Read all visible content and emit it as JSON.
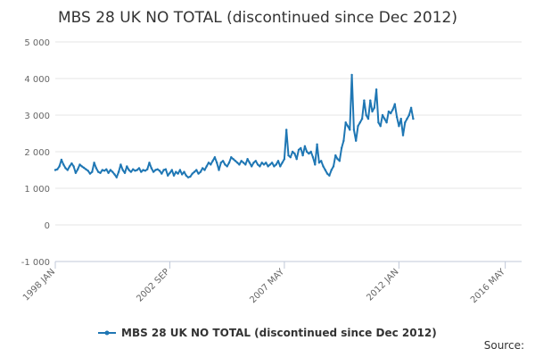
{
  "chart_data": {
    "type": "line",
    "title": "MBS 28 UK NO TOTAL (discontinued since Dec 2012)",
    "source_label": "Source:",
    "xlabel": "",
    "ylabel": "",
    "ylim": [
      -1000,
      5000
    ],
    "yticks": [
      -1000,
      0,
      1000,
      2000,
      3000,
      4000,
      5000
    ],
    "ytick_labels": [
      "-1 000",
      "0",
      "1 000",
      "2 000",
      "3 000",
      "4 000",
      "5 000"
    ],
    "xlim": [
      "1998-01",
      "2017-01"
    ],
    "xticks": [
      "1998-01",
      "2002-09",
      "2007-05",
      "2012-01",
      "2016-05"
    ],
    "xtick_labels": [
      "1998 JAN",
      "2002 SEP",
      "2007 MAY",
      "2012 JAN",
      "2016 MAY"
    ],
    "grid": "horizontal",
    "legend_position": "bottom",
    "line_color": "#1f77b4",
    "series": [
      {
        "name": "MBS 28 UK NO TOTAL (discontinued since Dec 2012)",
        "points": [
          [
            "1998-01",
            1500
          ],
          [
            "1998-02",
            1520
          ],
          [
            "1998-03",
            1600
          ],
          [
            "1998-04",
            1780
          ],
          [
            "1998-05",
            1650
          ],
          [
            "1998-06",
            1550
          ],
          [
            "1998-07",
            1500
          ],
          [
            "1998-08",
            1600
          ],
          [
            "1998-09",
            1680
          ],
          [
            "1998-10",
            1600
          ],
          [
            "1998-11",
            1420
          ],
          [
            "1998-12",
            1520
          ],
          [
            "1999-01",
            1650
          ],
          [
            "1999-02",
            1600
          ],
          [
            "1999-03",
            1560
          ],
          [
            "1999-04",
            1520
          ],
          [
            "1999-05",
            1480
          ],
          [
            "1999-06",
            1400
          ],
          [
            "1999-07",
            1450
          ],
          [
            "1999-08",
            1700
          ],
          [
            "1999-09",
            1550
          ],
          [
            "1999-10",
            1450
          ],
          [
            "1999-11",
            1420
          ],
          [
            "1999-12",
            1500
          ],
          [
            "2000-01",
            1480
          ],
          [
            "2000-02",
            1520
          ],
          [
            "2000-03",
            1420
          ],
          [
            "2000-04",
            1500
          ],
          [
            "2000-05",
            1450
          ],
          [
            "2000-06",
            1380
          ],
          [
            "2000-07",
            1300
          ],
          [
            "2000-08",
            1450
          ],
          [
            "2000-09",
            1650
          ],
          [
            "2000-10",
            1500
          ],
          [
            "2000-11",
            1420
          ],
          [
            "2000-12",
            1600
          ],
          [
            "2001-01",
            1500
          ],
          [
            "2001-02",
            1450
          ],
          [
            "2001-03",
            1520
          ],
          [
            "2001-04",
            1480
          ],
          [
            "2001-05",
            1500
          ],
          [
            "2001-06",
            1550
          ],
          [
            "2001-07",
            1450
          ],
          [
            "2001-08",
            1500
          ],
          [
            "2001-09",
            1480
          ],
          [
            "2001-10",
            1520
          ],
          [
            "2001-11",
            1700
          ],
          [
            "2001-12",
            1550
          ],
          [
            "2002-01",
            1450
          ],
          [
            "2002-02",
            1500
          ],
          [
            "2002-03",
            1520
          ],
          [
            "2002-04",
            1480
          ],
          [
            "2002-05",
            1400
          ],
          [
            "2002-06",
            1500
          ],
          [
            "2002-07",
            1520
          ],
          [
            "2002-08",
            1350
          ],
          [
            "2002-09",
            1420
          ],
          [
            "2002-10",
            1500
          ],
          [
            "2002-11",
            1350
          ],
          [
            "2002-12",
            1450
          ],
          [
            "2003-01",
            1400
          ],
          [
            "2003-02",
            1500
          ],
          [
            "2003-03",
            1380
          ],
          [
            "2003-04",
            1450
          ],
          [
            "2003-05",
            1350
          ],
          [
            "2003-06",
            1300
          ],
          [
            "2003-07",
            1320
          ],
          [
            "2003-08",
            1400
          ],
          [
            "2003-09",
            1450
          ],
          [
            "2003-10",
            1500
          ],
          [
            "2003-11",
            1400
          ],
          [
            "2003-12",
            1450
          ],
          [
            "2004-01",
            1550
          ],
          [
            "2004-02",
            1500
          ],
          [
            "2004-03",
            1600
          ],
          [
            "2004-04",
            1700
          ],
          [
            "2004-05",
            1650
          ],
          [
            "2004-06",
            1750
          ],
          [
            "2004-07",
            1850
          ],
          [
            "2004-08",
            1700
          ],
          [
            "2004-09",
            1500
          ],
          [
            "2004-10",
            1700
          ],
          [
            "2004-11",
            1750
          ],
          [
            "2004-12",
            1650
          ],
          [
            "2005-01",
            1600
          ],
          [
            "2005-02",
            1700
          ],
          [
            "2005-03",
            1850
          ],
          [
            "2005-04",
            1800
          ],
          [
            "2005-05",
            1750
          ],
          [
            "2005-06",
            1700
          ],
          [
            "2005-07",
            1650
          ],
          [
            "2005-08",
            1750
          ],
          [
            "2005-09",
            1700
          ],
          [
            "2005-10",
            1650
          ],
          [
            "2005-11",
            1800
          ],
          [
            "2005-12",
            1700
          ],
          [
            "2006-01",
            1600
          ],
          [
            "2006-02",
            1700
          ],
          [
            "2006-03",
            1750
          ],
          [
            "2006-04",
            1650
          ],
          [
            "2006-05",
            1600
          ],
          [
            "2006-06",
            1700
          ],
          [
            "2006-07",
            1650
          ],
          [
            "2006-08",
            1700
          ],
          [
            "2006-09",
            1600
          ],
          [
            "2006-10",
            1650
          ],
          [
            "2006-11",
            1700
          ],
          [
            "2006-12",
            1600
          ],
          [
            "2007-01",
            1650
          ],
          [
            "2007-02",
            1750
          ],
          [
            "2007-03",
            1600
          ],
          [
            "2007-04",
            1700
          ],
          [
            "2007-05",
            1800
          ],
          [
            "2007-06",
            2600
          ],
          [
            "2007-07",
            1900
          ],
          [
            "2007-08",
            1850
          ],
          [
            "2007-09",
            2000
          ],
          [
            "2007-10",
            1950
          ],
          [
            "2007-11",
            1800
          ],
          [
            "2007-12",
            2050
          ],
          [
            "2008-01",
            2100
          ],
          [
            "2008-02",
            1900
          ],
          [
            "2008-03",
            2150
          ],
          [
            "2008-04",
            2000
          ],
          [
            "2008-05",
            1950
          ],
          [
            "2008-06",
            2000
          ],
          [
            "2008-07",
            1850
          ],
          [
            "2008-08",
            1650
          ],
          [
            "2008-09",
            2200
          ],
          [
            "2008-10",
            1700
          ],
          [
            "2008-11",
            1750
          ],
          [
            "2008-12",
            1600
          ],
          [
            "2009-01",
            1500
          ],
          [
            "2009-02",
            1400
          ],
          [
            "2009-03",
            1350
          ],
          [
            "2009-04",
            1500
          ],
          [
            "2009-05",
            1600
          ],
          [
            "2009-06",
            1900
          ],
          [
            "2009-07",
            1800
          ],
          [
            "2009-08",
            1750
          ],
          [
            "2009-09",
            2100
          ],
          [
            "2009-10",
            2300
          ],
          [
            "2009-11",
            2800
          ],
          [
            "2009-12",
            2700
          ],
          [
            "2010-01",
            2600
          ],
          [
            "2010-02",
            4100
          ],
          [
            "2010-03",
            2600
          ],
          [
            "2010-04",
            2300
          ],
          [
            "2010-05",
            2700
          ],
          [
            "2010-06",
            2800
          ],
          [
            "2010-07",
            2900
          ],
          [
            "2010-08",
            3400
          ],
          [
            "2010-09",
            3000
          ],
          [
            "2010-10",
            2900
          ],
          [
            "2010-11",
            3400
          ],
          [
            "2010-12",
            3100
          ],
          [
            "2011-01",
            3200
          ],
          [
            "2011-02",
            3700
          ],
          [
            "2011-03",
            2800
          ],
          [
            "2011-04",
            2700
          ],
          [
            "2011-05",
            3000
          ],
          [
            "2011-06",
            2900
          ],
          [
            "2011-07",
            2800
          ],
          [
            "2011-08",
            3100
          ],
          [
            "2011-09",
            3050
          ],
          [
            "2011-10",
            3150
          ],
          [
            "2011-11",
            3300
          ],
          [
            "2011-12",
            2950
          ],
          [
            "2012-01",
            2700
          ],
          [
            "2012-02",
            2900
          ],
          [
            "2012-03",
            2450
          ],
          [
            "2012-04",
            2800
          ],
          [
            "2012-05",
            2900
          ],
          [
            "2012-06",
            3000
          ],
          [
            "2012-07",
            3200
          ],
          [
            "2012-08",
            2900
          ]
        ]
      }
    ]
  }
}
